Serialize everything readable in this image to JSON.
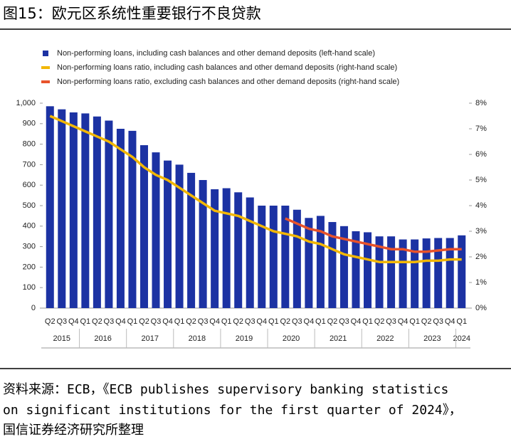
{
  "header": {
    "title": "图15：欧元区系统性重要银行不良贷款"
  },
  "chart_data": {
    "type": "bar",
    "categories": [
      "Q2",
      "Q3",
      "Q4",
      "Q1",
      "Q2",
      "Q3",
      "Q4",
      "Q1",
      "Q2",
      "Q3",
      "Q4",
      "Q1",
      "Q2",
      "Q3",
      "Q4",
      "Q1",
      "Q2",
      "Q3",
      "Q4",
      "Q1",
      "Q2",
      "Q3",
      "Q4",
      "Q1",
      "Q2",
      "Q3",
      "Q4",
      "Q1",
      "Q2",
      "Q3",
      "Q4",
      "Q1",
      "Q2",
      "Q3",
      "Q4",
      "Q1"
    ],
    "year_labels": [
      "2015",
      "2016",
      "2017",
      "2018",
      "2019",
      "2020",
      "2021",
      "2022",
      "2023",
      "2024"
    ],
    "series": [
      {
        "name": "Non-performing loans, including cash balances and other demand deposits (left-hand scale)",
        "type": "bar",
        "color": "#1c32a3",
        "values": [
          985,
          970,
          955,
          950,
          935,
          915,
          875,
          865,
          795,
          760,
          720,
          700,
          660,
          625,
          580,
          585,
          565,
          540,
          500,
          500,
          500,
          480,
          440,
          450,
          420,
          400,
          375,
          370,
          350,
          350,
          335,
          335,
          340,
          342,
          342,
          355
        ]
      },
      {
        "name": "Non-performing loans ratio, including cash balances and other demand deposits (right-hand scale)",
        "type": "line",
        "axis": "y2",
        "color": "#f2b705",
        "values": [
          7.5,
          7.3,
          7.1,
          6.9,
          6.7,
          6.5,
          6.2,
          5.9,
          5.5,
          5.2,
          5.0,
          4.7,
          4.4,
          4.1,
          3.8,
          3.7,
          3.6,
          3.4,
          3.2,
          3.0,
          2.9,
          2.8,
          2.6,
          2.5,
          2.3,
          2.1,
          2.0,
          1.9,
          1.8,
          1.8,
          1.8,
          1.8,
          1.85,
          1.85,
          1.9,
          1.9
        ]
      },
      {
        "name": "Non-performing loans ratio, excluding cash balances and other demand deposits (right-hand scale)",
        "type": "line",
        "axis": "y2",
        "color": "#e8532b",
        "values": [
          null,
          null,
          null,
          null,
          null,
          null,
          null,
          null,
          null,
          null,
          null,
          null,
          null,
          null,
          null,
          null,
          null,
          null,
          null,
          null,
          3.5,
          3.3,
          3.1,
          3.0,
          2.8,
          2.7,
          2.6,
          2.5,
          2.4,
          2.3,
          2.3,
          2.2,
          2.2,
          2.25,
          2.3,
          2.3
        ]
      }
    ],
    "ylim": [
      0,
      1000
    ],
    "yticks": [
      0,
      100,
      200,
      300,
      400,
      500,
      600,
      700,
      800,
      900,
      {
        "value": 1000,
        "label": "1,000"
      }
    ],
    "y2lim": [
      0,
      8
    ],
    "y2ticks": [
      {
        "value": 0,
        "label": "0%"
      },
      {
        "value": 1,
        "label": "1%"
      },
      {
        "value": 2,
        "label": "2%"
      },
      {
        "value": 3,
        "label": "3%"
      },
      {
        "value": 4,
        "label": "4%"
      },
      {
        "value": 5,
        "label": "5%"
      },
      {
        "value": 6,
        "label": "6%"
      },
      {
        "value": 7,
        "label": "7%"
      },
      {
        "value": 8,
        "label": "8%"
      }
    ],
    "grid": false
  },
  "source": {
    "lines": [
      "资料来源：ECB，《ECB publishes supervisory banking statistics",
      "on significant institutions for the first quarter of 2024》，",
      "国信证券经济研究所整理"
    ]
  }
}
